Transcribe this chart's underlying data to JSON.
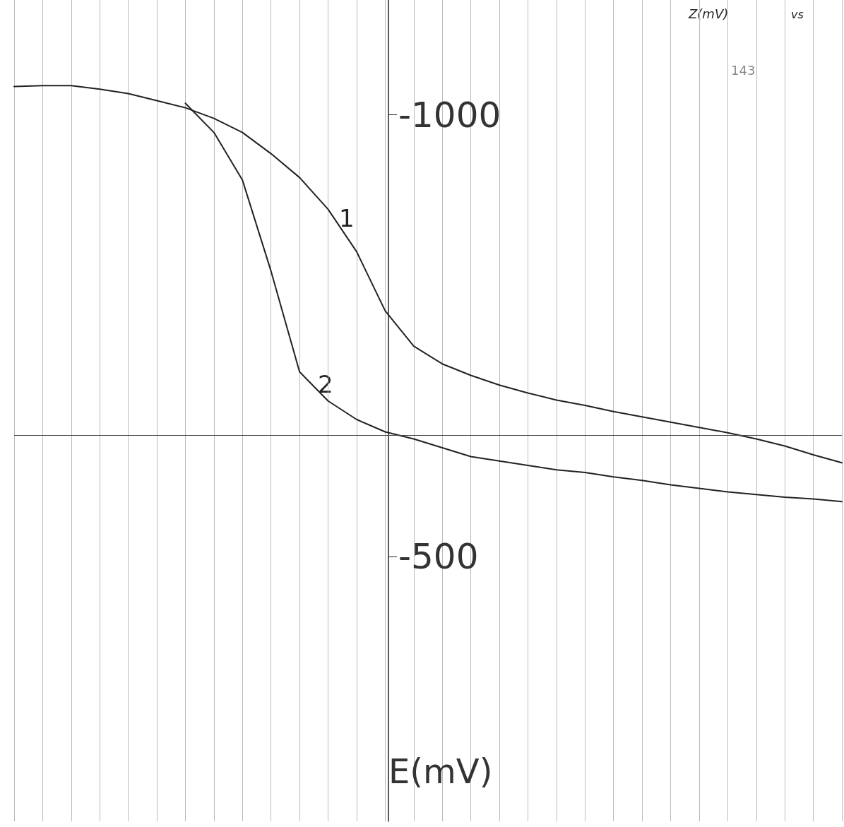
{
  "chart_data": {
    "type": "line",
    "ylabel": "E(mV)",
    "categories": [
      null,
      null,
      null,
      null,
      null,
      null,
      null,
      null,
      null,
      null,
      null,
      null,
      null,
      null,
      null,
      null,
      null,
      null,
      null,
      null,
      null,
      null,
      null,
      null,
      null,
      null,
      null,
      null,
      null,
      null
    ],
    "series": [
      {
        "color": "#222222",
        "values": [
          -1032,
          -1033,
          -1033,
          -1029,
          -1024,
          -1016,
          -1008,
          -996,
          -980,
          -956,
          -929,
          -893,
          -845,
          -778,
          -738,
          -718,
          -705,
          -694,
          -685,
          -677,
          -671,
          -664,
          -658,
          -652,
          -646,
          -640,
          -633,
          -625,
          -615,
          -606
        ]
      },
      {
        "color": "#222222",
        "values": [
          null,
          null,
          null,
          null,
          null,
          null,
          -1013,
          -980,
          -926,
          -823,
          -709,
          -676,
          -655,
          -641,
          -633,
          -623,
          -613,
          -608,
          -603,
          -598,
          -595,
          -590,
          -586,
          -581,
          -577,
          -573,
          -570,
          -567,
          -565,
          -562
        ]
      }
    ],
    "ylim": [
      -200,
      -1130
    ],
    "yticks": [
      -1000,
      -500
    ],
    "ref_lines": [
      {
        "axis": "y",
        "value": -637,
        "color": "#444444"
      }
    ],
    "annotations": [
      "1",
      "2",
      "143",
      "Z(mV)",
      "vs"
    ],
    "grid": "x",
    "legend": false,
    "marker": "none",
    "line_style": "solid"
  }
}
